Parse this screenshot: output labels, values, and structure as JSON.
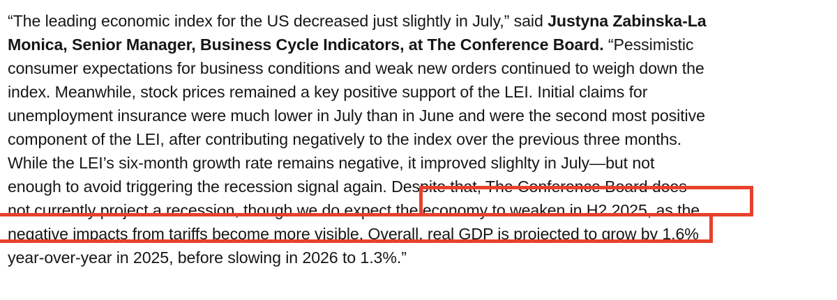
{
  "quote": {
    "lines": [
      {
        "pre": "“The leading economic index for the US decreased just slightly in July,” said ",
        "bold": "Justyna Zabinska-La"
      },
      {
        "bold": "Monica, Senior Manager, Business Cycle Indicators, at The Conference Board.",
        "post": " “Pessimistic"
      },
      {
        "text": "consumer expectations for business conditions and weak new orders continued to weigh down the"
      },
      {
        "text": "index. Meanwhile, stock prices remained a key positive support of the LEI. Initial claims for"
      },
      {
        "text": "unemployment insurance were much lower in July than in June and were the second most positive"
      },
      {
        "text": "component of the LEI, after contributing negatively to the index over the previous three months."
      },
      {
        "text": "While the LEI’s six-month growth rate remains negative, it improved slighlty in July—but not"
      },
      {
        "pre": "enough to avoid triggering the recession signal again.",
        "highlight": " Despite that, The Conference Board does"
      },
      {
        "highlight": "not currently project a recession, though we do expect the economy to weaken in H2 2025",
        "post": ", as the"
      },
      {
        "text": "negative impacts from tariffs become more visible. Overall, real GDP is projected to grow by 1.6%"
      },
      {
        "text": "year-over-year in 2025, before slowing in 2026 to 1.3%.”"
      }
    ]
  },
  "highlight_color": "#e8412b"
}
